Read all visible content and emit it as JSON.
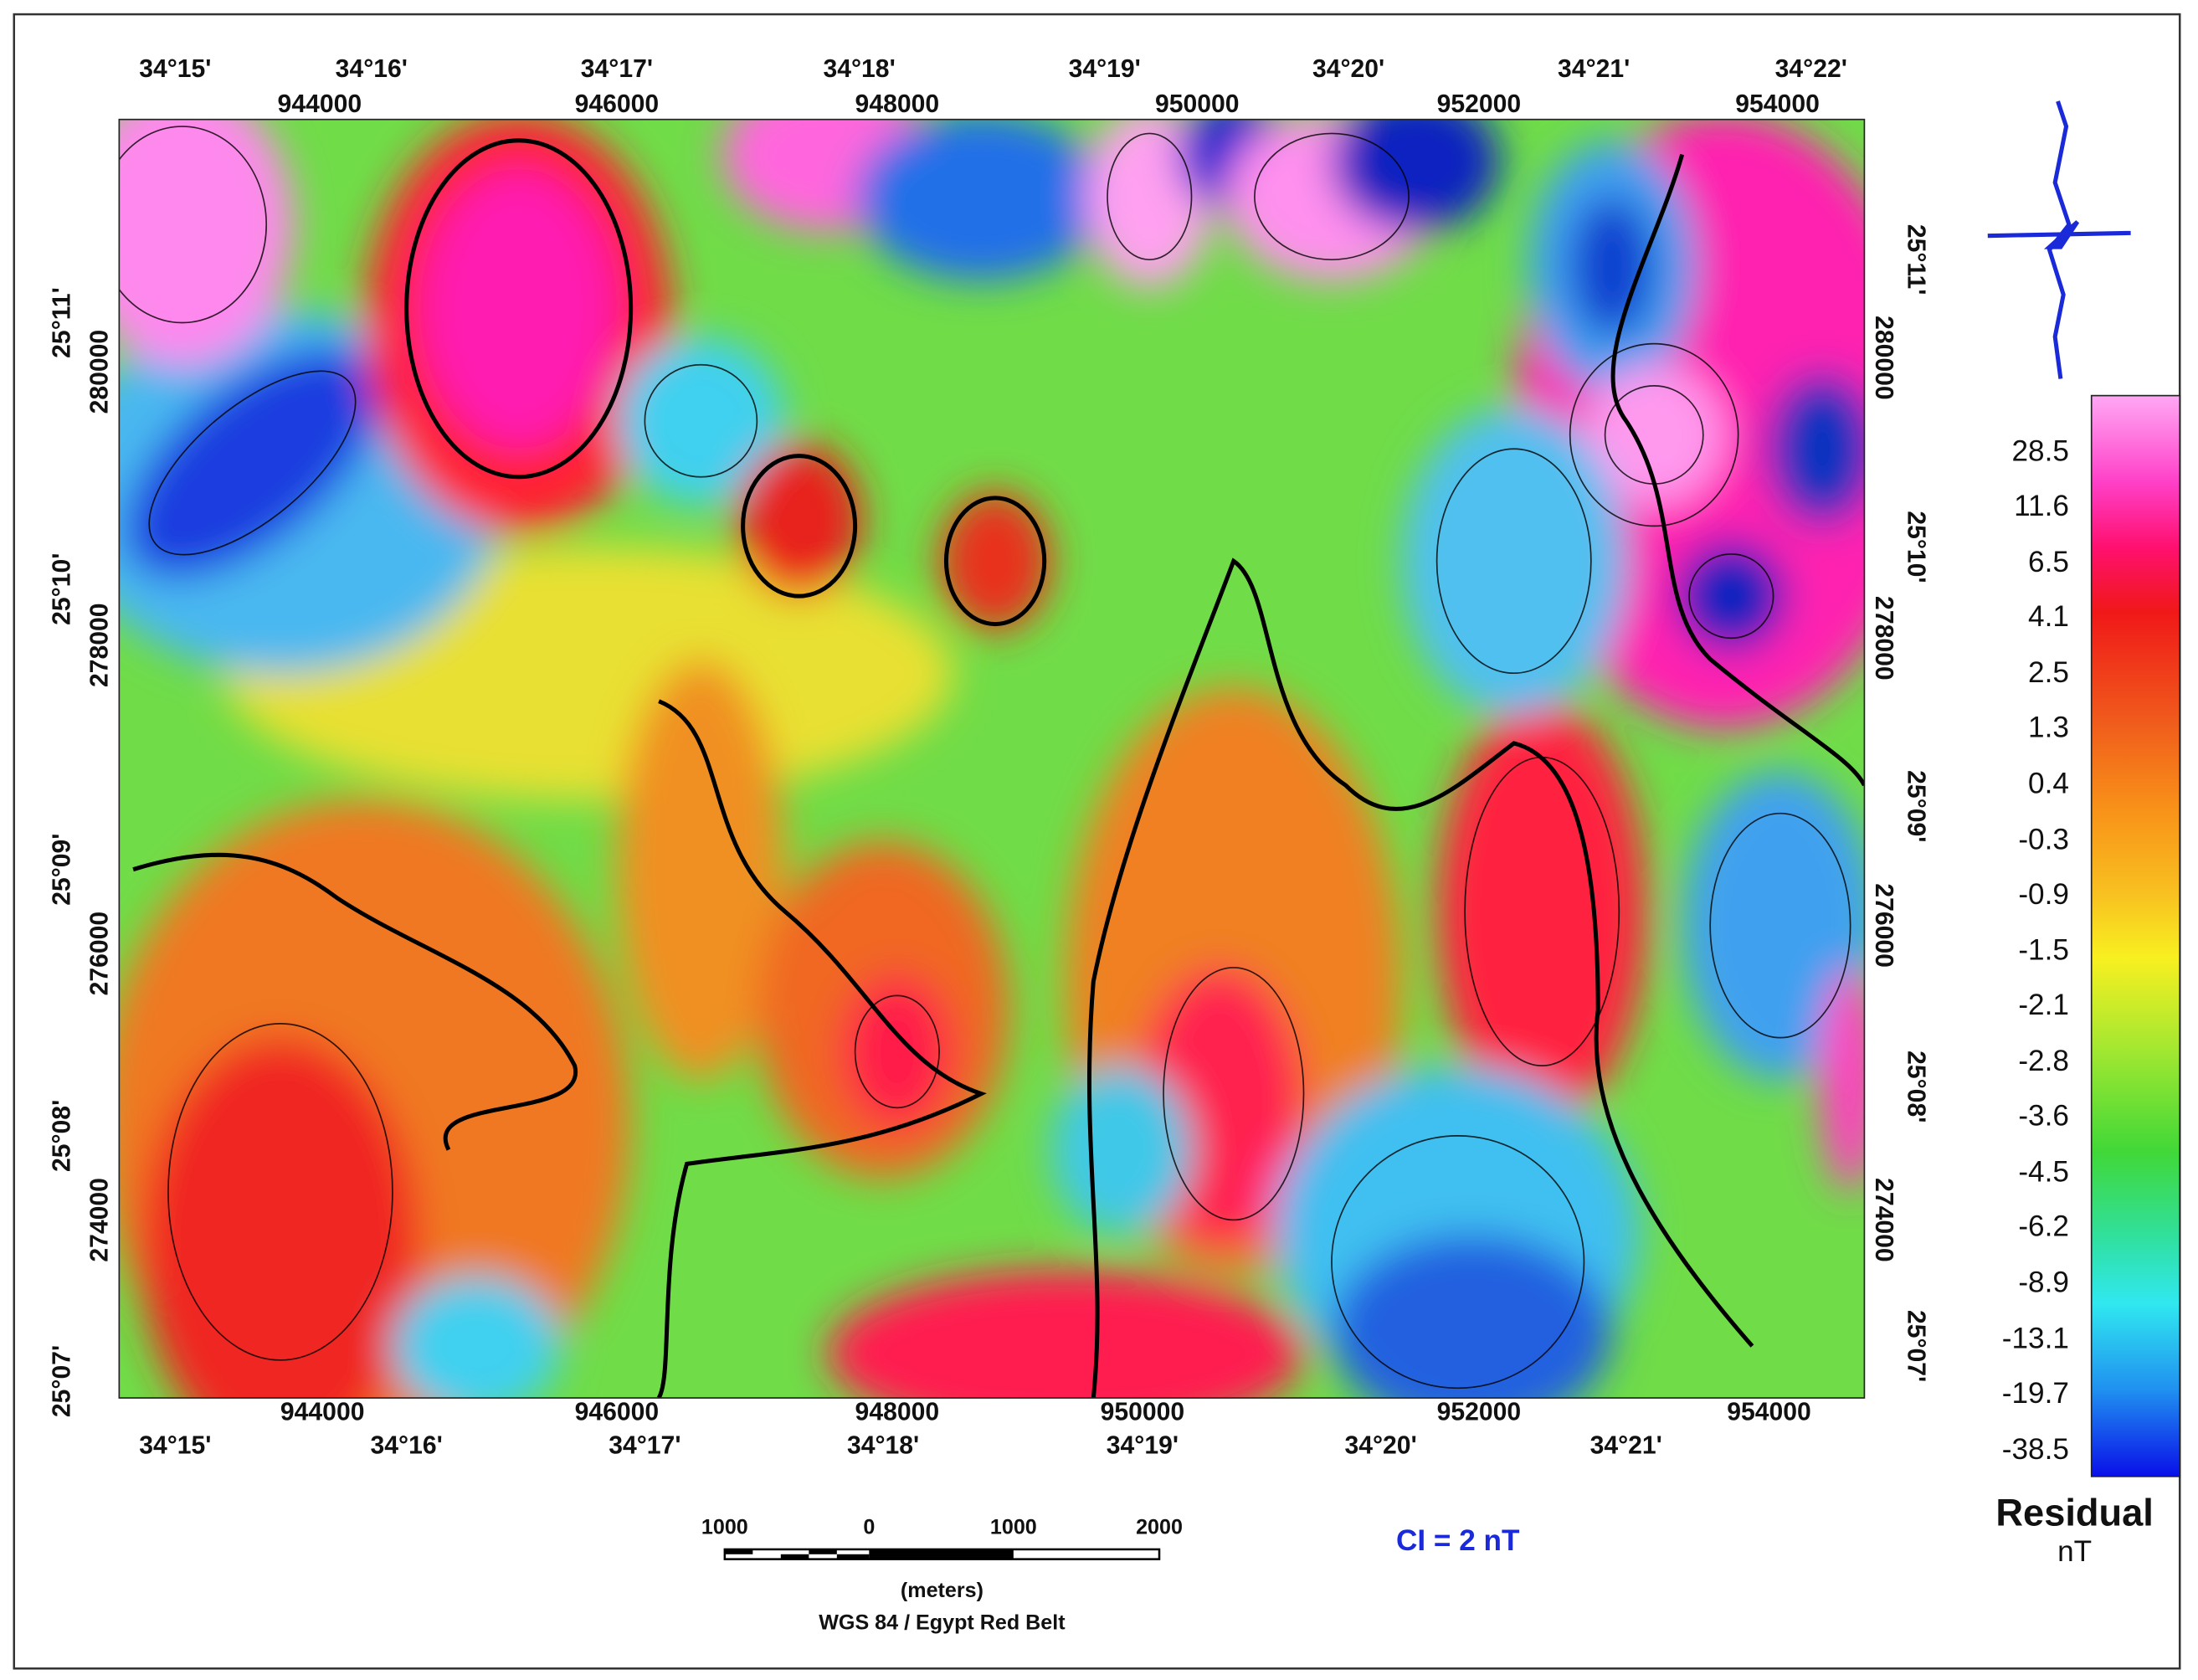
{
  "top_axis": {
    "longitudes": [
      "34°15'",
      "34°16'",
      "34°17'",
      "34°18'",
      "34°19'",
      "34°20'",
      "34°21'",
      "34°22'"
    ],
    "eastings": [
      "944000",
      "946000",
      "948000",
      "950000",
      "952000",
      "954000"
    ]
  },
  "bottom_axis": {
    "eastings": [
      "944000",
      "946000",
      "948000",
      "950000",
      "952000",
      "954000"
    ],
    "longitudes": [
      "34°15'",
      "34°16'",
      "34°17'",
      "34°18'",
      "34°19'",
      "34°20'",
      "34°21'"
    ]
  },
  "left_axis": {
    "latitudes": [
      "25°11'",
      "25°10'",
      "25°09'",
      "25°08'",
      "25°07'"
    ],
    "northings": [
      "280000",
      "278000",
      "276000",
      "274000"
    ]
  },
  "right_axis": {
    "latitudes": [
      "25°11'",
      "25°10'",
      "25°09'",
      "25°08'",
      "25°07'"
    ],
    "northings": [
      "280000",
      "278000",
      "276000",
      "274000"
    ]
  },
  "legend": {
    "labels": [
      "28.5",
      "11.6",
      "6.5",
      "4.1",
      "2.5",
      "1.3",
      "0.4",
      "-0.3",
      "-0.9",
      "-1.5",
      "-2.1",
      "-2.8",
      "-3.6",
      "-4.5",
      "-6.2",
      "-8.9",
      "-13.1",
      "-19.7",
      "-38.5"
    ],
    "title": "Residual",
    "unit": "nT"
  },
  "scale_bar": {
    "labels": [
      "1000",
      "0",
      "1000",
      "2000"
    ],
    "unit": "(meters)",
    "projection": "WGS 84 / Egypt Red Belt"
  },
  "contour_interval": "CI = 2 nT"
}
